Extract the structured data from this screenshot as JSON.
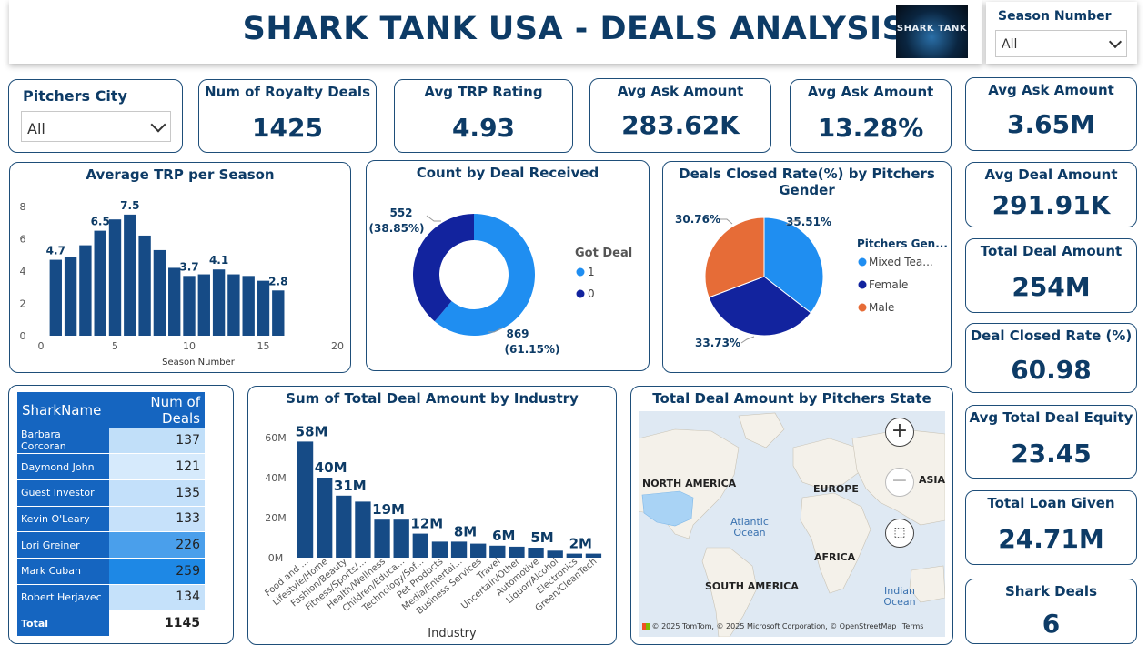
{
  "header": {
    "title": "SHARK TANK USA - DEALS ANALYSIS",
    "logo_text": "SHARK TANK"
  },
  "slicers": {
    "season": {
      "label": "Season Number",
      "value": "All"
    },
    "city": {
      "label": "Pitchers City",
      "value": "All"
    }
  },
  "kpis": {
    "royalty": {
      "title": "Num of Royalty Deals",
      "value": "1425"
    },
    "trp": {
      "title": "Avg TRP Rating",
      "value": "4.93"
    },
    "ask_amount": {
      "title": "Avg Ask Amount",
      "value": "283.62K"
    },
    "ask_pct": {
      "title": "Avg Ask Amount",
      "value": "13.28%"
    },
    "ask_m": {
      "title": "Avg Ask Amount",
      "value": "3.65M"
    },
    "avg_deal": {
      "title": "Avg Deal Amount",
      "value": "291.91K"
    },
    "total_deal": {
      "title": "Total Deal Amount",
      "value": "254M"
    },
    "closed_rate": {
      "title": "Deal Closed Rate (%)",
      "value": "60.98"
    },
    "equity": {
      "title": "Avg Total Deal Equity",
      "value": "23.45"
    },
    "loan": {
      "title": "Total Loan Given",
      "value": "24.71M"
    },
    "shark_deals": {
      "title": "Shark Deals",
      "value": "6"
    }
  },
  "trp_chart": {
    "title": "Average TRP per Season",
    "xlabel": "Season Number",
    "xticks": [
      "0",
      "5",
      "10",
      "15",
      "20"
    ],
    "yticks": [
      "0",
      "2",
      "4",
      "6",
      "8"
    ]
  },
  "deal_chart": {
    "title": "Count by Deal Received",
    "legend_title": "Got Deal",
    "legend": [
      "1",
      "0"
    ],
    "label_0_count": "552",
    "label_0_pct": "(38.85%)",
    "label_1_count": "869",
    "label_1_pct": "(61.15%)"
  },
  "gender_chart": {
    "title": "Deals Closed Rate(%) by Pitchers Gender",
    "legend_title": "Pitchers Gen...",
    "legend": [
      "Mixed Tea...",
      "Female",
      "Male"
    ],
    "labels": [
      "35.51%",
      "33.73%",
      "30.76%"
    ]
  },
  "shark_table": {
    "headers": [
      "SharkName",
      "Num of Deals"
    ],
    "rows": [
      [
        "Barbara Corcoran",
        "137"
      ],
      [
        "Daymond John",
        "121"
      ],
      [
        "Guest Investor",
        "135"
      ],
      [
        "Kevin O'Leary",
        "133"
      ],
      [
        "Lori Greiner",
        "226"
      ],
      [
        "Mark Cuban",
        "259"
      ],
      [
        "Robert Herjavec",
        "134"
      ]
    ],
    "total_label": "Total",
    "total_value": "1145"
  },
  "industry_chart": {
    "title": "Sum of Total Deal Amount by Industry",
    "xlabel": "Industry",
    "yticks": [
      "0M",
      "20M",
      "40M",
      "60M"
    ],
    "data_labels": [
      "58M",
      "40M",
      "31M",
      "19M",
      "12M",
      "8M",
      "6M",
      "5M",
      "2M"
    ],
    "categories": [
      "Food and ...",
      "Lifestyle/Home",
      "Fashion/Beauty",
      "Fitness/Sports/...",
      "Health/Wellness",
      "Children/Educa...",
      "Technology/Sof...",
      "Pet Products",
      "Media/Entertai...",
      "Business Services",
      "Travel",
      "Uncertain/Other",
      "Automotive",
      "Liquor/Alcohol",
      "Electronics",
      "Green/CleanTech"
    ]
  },
  "map": {
    "title": "Total Deal Amount by Pitchers State",
    "labels": {
      "north_america": "NORTH AMERICA",
      "europe": "EUROPE",
      "asia": "ASIA",
      "africa": "AFRICA",
      "south_america": "SOUTH AMERICA",
      "atlantic": "Atlantic Ocean",
      "indian": "Indian Ocean"
    },
    "copyright": "© 2025 TomTom, © 2025 Microsoft Corporation, © OpenStreetMap",
    "terms": "Terms"
  },
  "chart_data": [
    {
      "type": "bar",
      "title": "Average TRP per Season",
      "xlabel": "Season Number",
      "ylabel": "",
      "x": [
        1,
        2,
        3,
        4,
        5,
        6,
        7,
        8,
        9,
        10,
        11,
        12,
        13,
        14,
        15,
        16
      ],
      "values": [
        4.7,
        4.9,
        5.6,
        6.5,
        7.2,
        7.5,
        6.2,
        5.3,
        4.2,
        3.7,
        3.8,
        4.1,
        3.8,
        3.7,
        3.4,
        2.8
      ],
      "xlim": [
        0,
        20
      ],
      "ylim": [
        0,
        8
      ],
      "data_labels": {
        "1": "4.7",
        "4": "6.5",
        "6": "7.5",
        "10": "3.7",
        "12": "4.1",
        "16": "2.8"
      }
    },
    {
      "type": "pie",
      "title": "Count by Deal Received",
      "donut": true,
      "labels": [
        "1",
        "0"
      ],
      "values": [
        869,
        552
      ],
      "percent": [
        61.15,
        38.85
      ],
      "colors": [
        "#1f8ef1",
        "#12239e"
      ]
    },
    {
      "type": "pie",
      "title": "Deals Closed Rate(%) by Pitchers Gender",
      "labels": [
        "Mixed Tea...",
        "Female",
        "Male"
      ],
      "values": [
        35.51,
        33.73,
        30.76
      ],
      "colors": [
        "#1f8ef1",
        "#12239e",
        "#e66c37"
      ]
    },
    {
      "type": "table",
      "columns": [
        "SharkName",
        "Num of Deals"
      ],
      "rows": [
        [
          "Barbara Corcoran",
          137
        ],
        [
          "Daymond John",
          121
        ],
        [
          "Guest Investor",
          135
        ],
        [
          "Kevin O'Leary",
          133
        ],
        [
          "Lori Greiner",
          226
        ],
        [
          "Mark Cuban",
          259
        ],
        [
          "Robert Herjavec",
          134
        ]
      ],
      "total": 1145
    },
    {
      "type": "bar",
      "title": "Sum of Total Deal Amount by Industry",
      "xlabel": "Industry",
      "ylabel": "",
      "categories": [
        "Food and ...",
        "Lifestyle/Home",
        "Fashion/Beauty",
        "Fitness/Sports/...",
        "Health/Wellness",
        "Children/Educa...",
        "Technology/Sof...",
        "Pet Products",
        "Media/Entertai...",
        "Business Services",
        "Travel",
        "Uncertain/Other",
        "Automotive",
        "Liquor/Alcohol",
        "Electronics",
        "Green/CleanTech"
      ],
      "values": [
        58,
        40,
        31,
        28,
        19,
        19,
        12,
        8,
        8,
        7,
        6,
        5.5,
        5,
        3.5,
        2,
        2
      ],
      "units": "M",
      "ylim": [
        0,
        65
      ]
    }
  ],
  "colors": {
    "dark_blue": "#0d3b66",
    "bar_blue": "#164b86",
    "accent_blue": "#1f8ef1",
    "navy": "#12239e",
    "orange": "#e66c37"
  }
}
